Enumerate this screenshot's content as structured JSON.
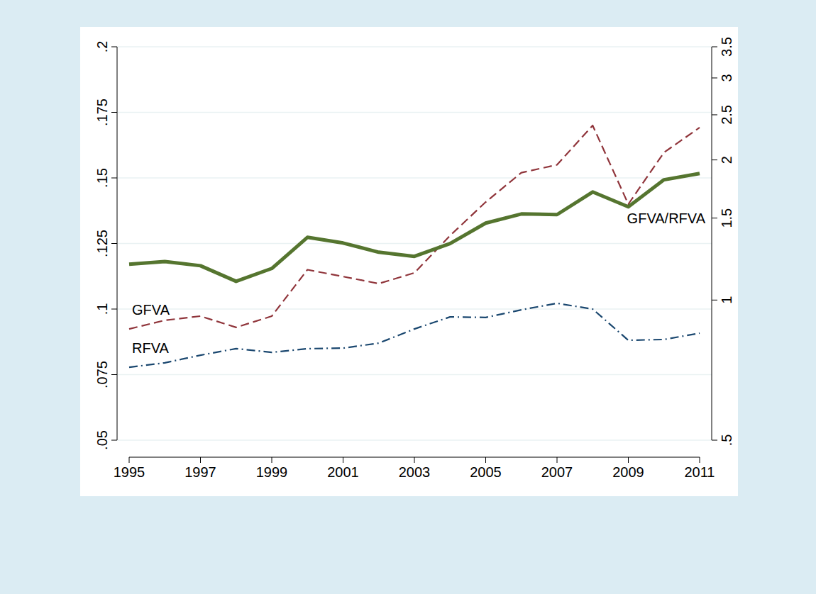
{
  "chart_data": {
    "type": "line",
    "x": [
      1995,
      1996,
      1997,
      1998,
      1999,
      2000,
      2001,
      2002,
      2003,
      2004,
      2005,
      2006,
      2007,
      2008,
      2009,
      2010,
      2011
    ],
    "xlim": [
      1995,
      2011
    ],
    "xticks": [
      1995,
      1997,
      1999,
      2001,
      2003,
      2005,
      2007,
      2009,
      2011
    ],
    "ylim": [
      0.05,
      0.2
    ],
    "yticks": [
      {
        "value": 0.05,
        "label": ".05"
      },
      {
        "value": 0.075,
        "label": ".075"
      },
      {
        "value": 0.1,
        "label": ".1"
      },
      {
        "value": 0.125,
        "label": ".125"
      },
      {
        "value": 0.15,
        "label": ".15"
      },
      {
        "value": 0.175,
        "label": ".175"
      },
      {
        "value": 0.2,
        "label": ".2"
      }
    ],
    "y2lim": [
      0.5,
      3.5
    ],
    "y2ticks": [
      {
        "value": 0.5,
        "label": ".5"
      },
      1,
      1.5,
      2,
      2.5,
      3,
      3.5
    ],
    "log": "y2",
    "grid": true,
    "series": [
      {
        "name": "GFVA",
        "color": "#90353b",
        "line_style": "dash",
        "values": [
          0.0924,
          0.0957,
          0.0973,
          0.093,
          0.0973,
          0.115,
          0.1124,
          0.1097,
          0.1138,
          0.128,
          0.1408,
          0.152,
          0.155,
          0.17,
          0.14,
          0.1597,
          0.1692
        ]
      },
      {
        "name": "RFVA",
        "color": "#1a476f",
        "line_style": "dash_dot",
        "values": [
          0.0778,
          0.0795,
          0.0824,
          0.0849,
          0.0835,
          0.0849,
          0.0851,
          0.087,
          0.0924,
          0.097,
          0.0968,
          0.0997,
          0.1022,
          0.1,
          0.0881,
          0.0884,
          0.0908
        ]
      },
      {
        "name": "GFVA/RFVA",
        "color": "#55752f",
        "line_style": "solid",
        "axis": "y2",
        "values": [
          1.194,
          1.21,
          1.185,
          1.097,
          1.169,
          1.364,
          1.326,
          1.267,
          1.241,
          1.322,
          1.463,
          1.531,
          1.526,
          1.707,
          1.586,
          1.813,
          1.87
        ]
      }
    ]
  }
}
